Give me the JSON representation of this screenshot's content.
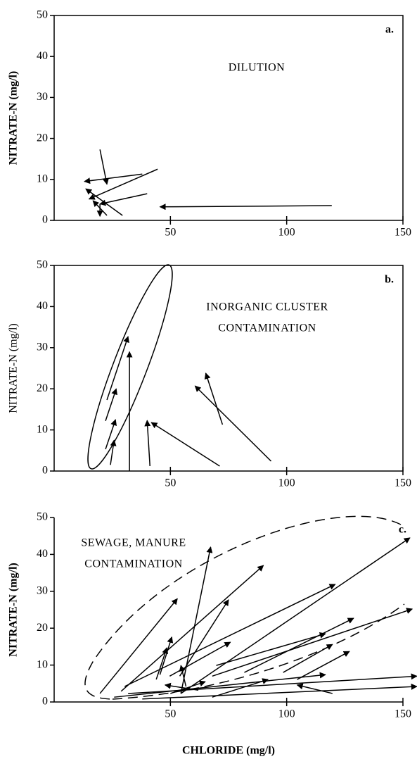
{
  "chart_data": [
    {
      "type": "vector",
      "panel_label": "a.",
      "annotation": [
        "DILUTION"
      ],
      "ylabel": "NITRATE-N (mg/l)",
      "ylabel_bold": true,
      "xlim": [
        0,
        150
      ],
      "ylim": [
        0,
        50
      ],
      "xticks": [
        50,
        100,
        150
      ],
      "yticks": [
        0,
        10,
        20,
        30,
        40,
        50
      ],
      "frame": true,
      "color": "#000000",
      "arrows": {
        "x_start": [
          119.4,
          19.7,
          37.9,
          44.5,
          40,
          29.4,
          22.7,
          19.7
        ],
        "y_start": [
          3.6,
          17.3,
          11.3,
          12.5,
          6.5,
          1.2,
          1.2,
          4.0
        ],
        "x_end": [
          45.5,
          22.7,
          13,
          15,
          19.7,
          13.6,
          16.7,
          19.7
        ],
        "y_end": [
          3.3,
          8.8,
          9.5,
          5.2,
          4.0,
          7.7,
          4.8,
          1.0
        ]
      }
    },
    {
      "type": "vector",
      "panel_label": "b.",
      "annotation": [
        "INORGANIC CLUSTER",
        "CONTAMINATION"
      ],
      "ylabel": "NITRATE-N (mg/l)",
      "ylabel_bold": false,
      "xlim": [
        0,
        150
      ],
      "ylim": [
        0,
        50
      ],
      "xticks": [
        50,
        100,
        150
      ],
      "yticks": [
        0,
        10,
        20,
        30,
        40,
        50
      ],
      "frame": true,
      "color": "#000000",
      "arrows": {
        "x_start": [
          32.4,
          22.7,
          22.1,
          22.1,
          24.2,
          41.2,
          71.2,
          93.3,
          72.4
        ],
        "y_start": [
          0,
          17.3,
          12.2,
          5.3,
          1.5,
          1.2,
          1.2,
          2.4,
          11.3
        ],
        "x_end": [
          32.4,
          31.8,
          26.7,
          26.4,
          25.8,
          40,
          41.8,
          60.6,
          65.2
        ],
        "y_end": [
          29,
          32.7,
          20,
          12.5,
          7.5,
          12.3,
          11.8,
          20.7,
          23.8
        ]
      }
    },
    {
      "type": "vector",
      "panel_label": "c.",
      "annotation": [
        "SEWAGE,  MANURE",
        "CONTAMINATION"
      ],
      "ylabel": "NITRATE-N (mg/l)",
      "ylabel_bold": true,
      "xlabel": "CHLORIDE (mg/l)",
      "xlim": [
        0,
        150
      ],
      "ylim": [
        0,
        50
      ],
      "xticks": [
        50,
        100,
        150
      ],
      "yticks": [
        0,
        10,
        20,
        30,
        40,
        50
      ],
      "frame": false,
      "color": "#000000",
      "arrows": {
        "x_start": [
          19.7,
          54.5,
          54,
          30.3,
          54.5,
          28.8,
          81.8,
          68,
          45.5,
          43.9,
          49.7,
          69.7,
          98.5,
          104.5,
          25.8,
          31.8,
          37.9,
          119.7,
          50,
          62,
          68,
          56.7
        ],
        "y_start": [
          2.3,
          2.3,
          7,
          4.2,
          2.3,
          2.9,
          8,
          7,
          7.4,
          6.1,
          7,
          9.9,
          8,
          6.1,
          1.3,
          2.3,
          0.8,
          2.3,
          2.3,
          3.2,
          1.3,
          4.2
        ],
        "x_end": [
          53,
          67.3,
          75,
          120.9,
          153,
          90,
          128.8,
          154,
          50.6,
          48.5,
          75.8,
          116.7,
          119.7,
          127,
          116.7,
          156,
          156,
          104.5,
          65,
          47.7,
          92,
          54.5
        ],
        "y_end": [
          28,
          42,
          27.7,
          31.9,
          44.5,
          37,
          22.7,
          25.2,
          17.6,
          14.7,
          16.2,
          18.5,
          15.6,
          13.7,
          7.4,
          7,
          4.2,
          4.6,
          5.5,
          4.6,
          6.1,
          9.9
        ]
      }
    }
  ]
}
